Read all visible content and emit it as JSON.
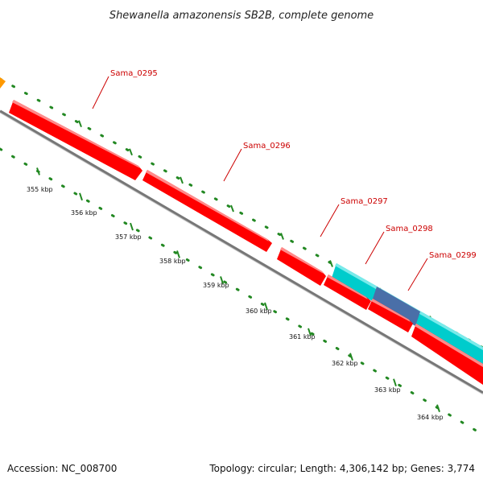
{
  "title": "Shewanella amazonensis SB2B, complete genome",
  "footer": {
    "accession": "Accession: NC_008700",
    "summary": "Topology: circular; Length: 4,306,142 bp; Genes: 3,774"
  },
  "colors": {
    "gene_forward": "#ff0000",
    "gene_highlight": "#00cccc",
    "gene_overlap": "#4a6fa8",
    "label": "#cc0000",
    "dots": "#228822",
    "backbone": "#777777",
    "partial_gene": "#ff9900"
  },
  "ruler_labels": [
    "355 kbp",
    "356 kbp",
    "357 kbp",
    "358 kbp",
    "359 kbp",
    "360 kbp",
    "361 kbp",
    "362 kbp",
    "363 kbp",
    "364 kbp"
  ],
  "genes": [
    {
      "name": "Sama_0295"
    },
    {
      "name": "Sama_0296"
    },
    {
      "name": "Sama_0297"
    },
    {
      "name": "Sama_0298"
    },
    {
      "name": "Sama_0299"
    }
  ]
}
